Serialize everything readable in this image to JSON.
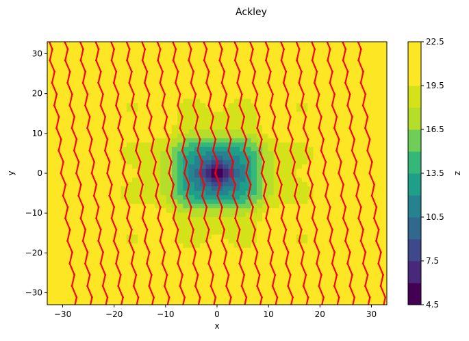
{
  "chart_data": {
    "type": "contour",
    "title": "Ackley",
    "xlabel": "x",
    "ylabel": "y",
    "xlim": [
      -33,
      33
    ],
    "ylim": [
      -33,
      33
    ],
    "xticks": [
      -30,
      -20,
      -10,
      0,
      10,
      20,
      30
    ],
    "yticks": [
      -30,
      -20,
      -10,
      0,
      10,
      20,
      30
    ],
    "colorbar": {
      "label": "z",
      "range": [
        4.5,
        22.5
      ],
      "ticks": [
        4.5,
        7.5,
        10.5,
        13.5,
        16.5,
        19.5,
        22.5
      ],
      "levels": [
        4.5,
        6.0,
        7.5,
        9.0,
        10.5,
        12.0,
        13.5,
        15.0,
        16.5,
        18.0,
        19.5,
        21.0,
        22.5
      ],
      "colors": [
        "#440154",
        "#482878",
        "#3e4989",
        "#31688e",
        "#26828e",
        "#1f9e89",
        "#35b779",
        "#6ece58",
        "#b5de2b",
        "#d4e21a",
        "#fde725",
        "#fde725"
      ]
    },
    "path_color": "#ff0000",
    "path_columns_x": [
      -30,
      -27,
      -24,
      -21,
      -18,
      -15,
      -12,
      -9,
      -6,
      -3,
      0,
      3,
      6,
      9,
      12,
      15,
      18,
      21,
      24,
      27,
      30
    ]
  }
}
